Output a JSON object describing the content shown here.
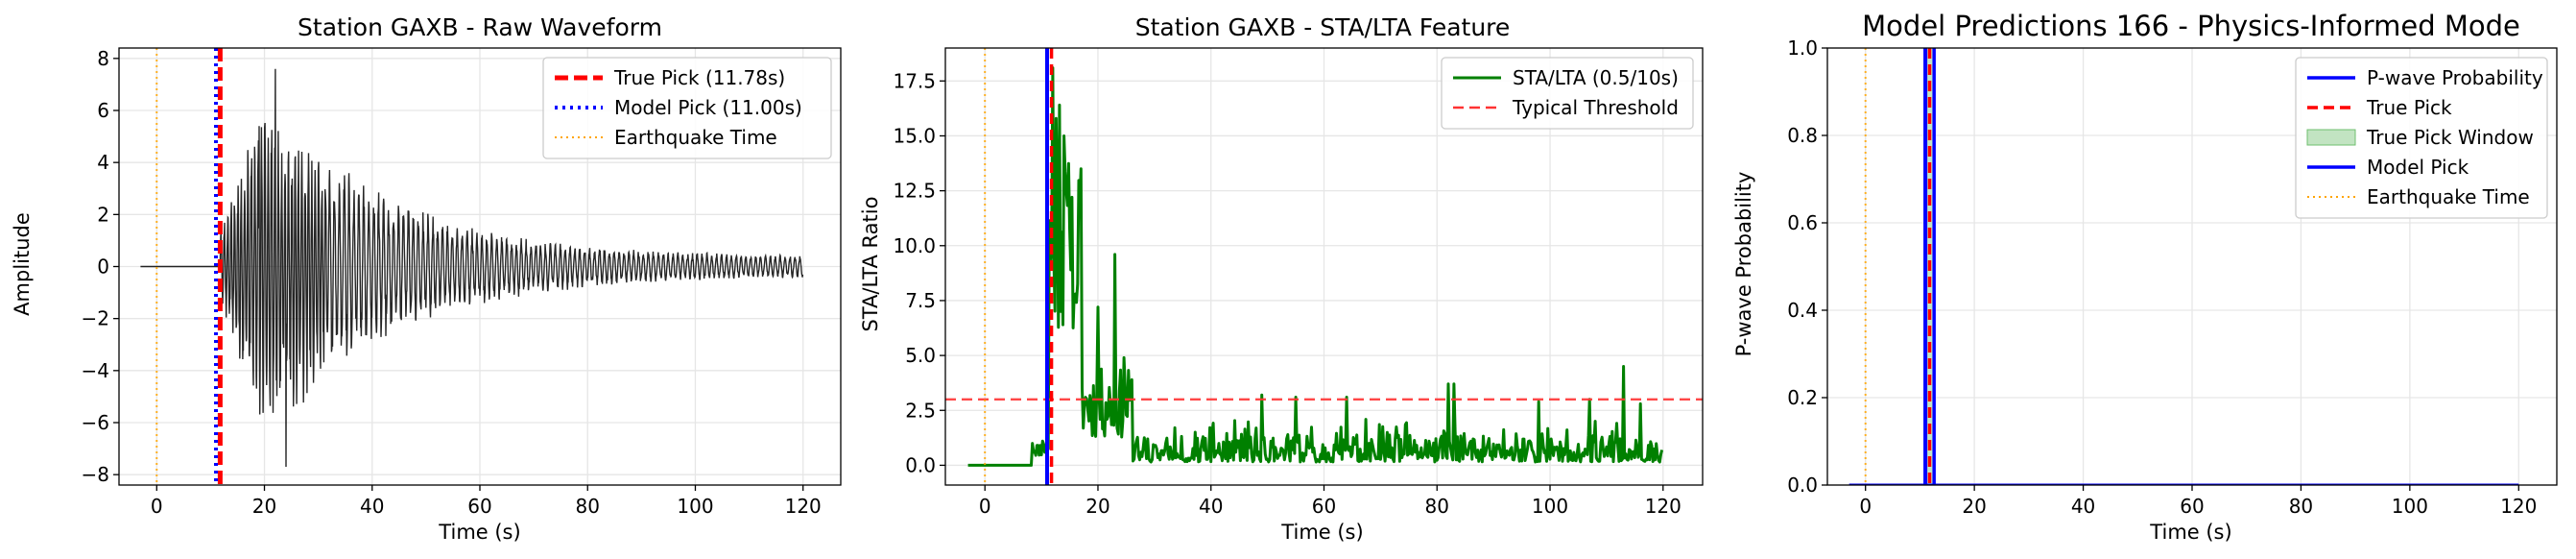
{
  "colors": {
    "true_pick": "#ff0000",
    "model_pick": "#0000ff",
    "earthquake": "#ffa500",
    "waveform": "#000000",
    "stalta": "#008000",
    "threshold": "#ff3333",
    "pick_window": "#a8d8a8"
  },
  "chart_data": [
    {
      "type": "line",
      "title": "Station GAXB - Raw Waveform",
      "xlabel": "Time (s)",
      "ylabel": "Amplitude",
      "xlim": [
        -7,
        127
      ],
      "ylim": [
        -8.4,
        8.4
      ],
      "xticks": [
        0,
        20,
        40,
        60,
        80,
        100,
        120
      ],
      "yticks": [
        -8,
        -6,
        -4,
        -2,
        0,
        2,
        4,
        6,
        8
      ],
      "grid": true,
      "legend_position": "top-right",
      "series": [
        {
          "name": "True Pick (11.78s)",
          "kind": "vline",
          "x": 11.78,
          "style": "dashed"
        },
        {
          "name": "Model Pick (11.00s)",
          "kind": "vline",
          "x": 11.0,
          "style": "dotted"
        },
        {
          "name": "Earthquake Time",
          "kind": "vline",
          "x": 0,
          "style": "dotted-thin"
        }
      ],
      "waveform": {
        "x_start": -3,
        "x_end": 120,
        "onset": 11.78,
        "peak_envelope": 6.5,
        "notable_peaks": [
          [
            22,
            7.6
          ],
          [
            24,
            -7.7
          ],
          [
            21,
            -4.6
          ],
          [
            23,
            -4.4
          ],
          [
            19,
            5.4
          ]
        ]
      }
    },
    {
      "type": "line",
      "title": "Station GAXB - STA/LTA Feature",
      "xlabel": "Time (s)",
      "ylabel": "STA/LTA Ratio",
      "xlim": [
        -7,
        127
      ],
      "ylim": [
        -0.9,
        19.0
      ],
      "xticks": [
        0,
        20,
        40,
        60,
        80,
        100,
        120
      ],
      "yticks": [
        0.0,
        2.5,
        5.0,
        7.5,
        10.0,
        12.5,
        15.0,
        17.5
      ],
      "grid": true,
      "legend_position": "top-right",
      "series": [
        {
          "name": "STA/LTA (0.5/10s)",
          "kind": "line"
        },
        {
          "name": "Typical Threshold",
          "kind": "hline",
          "y": 3.0,
          "style": "dashed"
        }
      ],
      "vlines": {
        "true_pick": 11.78,
        "model_pick": 11.0,
        "earthquake": 0
      },
      "stalta": {
        "x_start": -3,
        "x_end": 120,
        "pre_event_level": 0.0,
        "small_bumps": [
          [
            8.5,
            1.0
          ],
          [
            9.5,
            0.9
          ],
          [
            10.2,
            1.1
          ]
        ],
        "peaks": [
          [
            12.0,
            18.1
          ],
          [
            12.6,
            15.8
          ],
          [
            13.2,
            16.4
          ],
          [
            14.0,
            15.0
          ],
          [
            15.0,
            10.8
          ],
          [
            16.0,
            7.8
          ],
          [
            20.0,
            7.2
          ],
          [
            23.0,
            9.6
          ],
          [
            24.5,
            4.9
          ],
          [
            49.0,
            3.2
          ],
          [
            55.0,
            3.1
          ],
          [
            64.0,
            3.1
          ],
          [
            82.0,
            3.7
          ],
          [
            83.0,
            3.7
          ],
          [
            98.0,
            2.9
          ],
          [
            107.0,
            3.0
          ],
          [
            113.0,
            4.5
          ],
          [
            116.0,
            2.8
          ]
        ]
      }
    },
    {
      "type": "line",
      "title": "Model Predictions 166 - Physics-Informed Mode",
      "xlabel": "Time (s)",
      "ylabel": "P-wave Probability",
      "xlim": [
        -7,
        127
      ],
      "ylim": [
        0.0,
        1.0
      ],
      "xticks": [
        0,
        20,
        40,
        60,
        80,
        100,
        120
      ],
      "yticks": [
        0.0,
        0.2,
        0.4,
        0.6,
        0.8,
        1.0
      ],
      "grid": true,
      "legend_position": "top-right",
      "series": [
        {
          "name": "P-wave Probability",
          "kind": "line"
        },
        {
          "name": "True Pick",
          "kind": "vline",
          "x": 11.78,
          "style": "dashed"
        },
        {
          "name": "True Pick Window",
          "kind": "band",
          "x": [
            11.28,
            12.28
          ]
        },
        {
          "name": "Model Pick",
          "kind": "vline",
          "x": 11.0,
          "style": "solid"
        },
        {
          "name": "Earthquake Time",
          "kind": "vline",
          "x": 0,
          "style": "dotted-thin"
        }
      ],
      "probability": {
        "x_start": -3,
        "x_end": 120,
        "values_note_hidden": "",
        "level": 0.0,
        "spike_x": [
          11.0,
          12.6
        ]
      }
    }
  ]
}
